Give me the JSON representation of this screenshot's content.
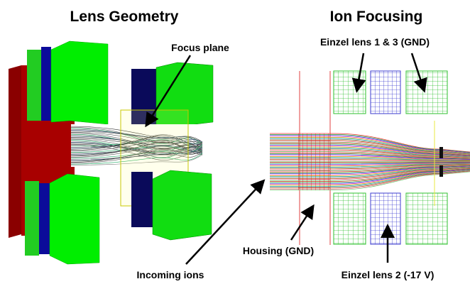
{
  "left_panel": {
    "title": "Lens Geometry",
    "focus_label": "Focus plane",
    "incoming_label": "Incoming ions"
  },
  "right_panel": {
    "title": "Ion Focusing",
    "outer_lens_label": "Einzel lens 1 & 3 (GND)",
    "housing_label": "Housing (GND)",
    "middle_lens_label": "Einzel lens 2 (-17 V)"
  }
}
